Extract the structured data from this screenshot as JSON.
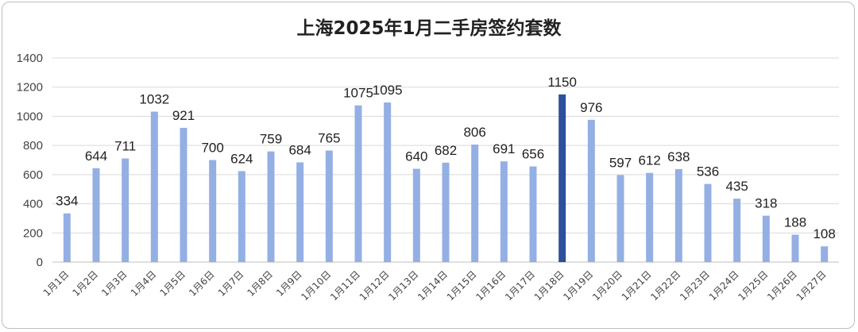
{
  "chart_data": {
    "type": "bar",
    "title": "上海2025年1月二手房签约套数",
    "categories": [
      "1月1日",
      "1月2日",
      "1月3日",
      "1月4日",
      "1月5日",
      "1月6日",
      "1月7日",
      "1月8日",
      "1月9日",
      "1月10日",
      "1月11日",
      "1月12日",
      "1月13日",
      "1月14日",
      "1月15日",
      "1月16日",
      "1月17日",
      "1月18日",
      "1月19日",
      "1月20日",
      "1月21日",
      "1月22日",
      "1月23日",
      "1月24日",
      "1月25日",
      "1月26日",
      "1月27日"
    ],
    "values": [
      334,
      644,
      711,
      1032,
      921,
      700,
      624,
      759,
      684,
      765,
      1075,
      1095,
      640,
      682,
      806,
      691,
      656,
      1150,
      976,
      597,
      612,
      638,
      536,
      435,
      318,
      188,
      108
    ],
    "highlight_index": 17,
    "colors": {
      "bar": "#94afe3",
      "highlight": "#2c4f9e",
      "grid": "#d9d9d9"
    },
    "ylim": [
      0,
      1400
    ],
    "yticks": [
      0,
      200,
      400,
      600,
      800,
      1000,
      1200,
      1400
    ],
    "grid": true,
    "xlabel": "",
    "ylabel": ""
  }
}
